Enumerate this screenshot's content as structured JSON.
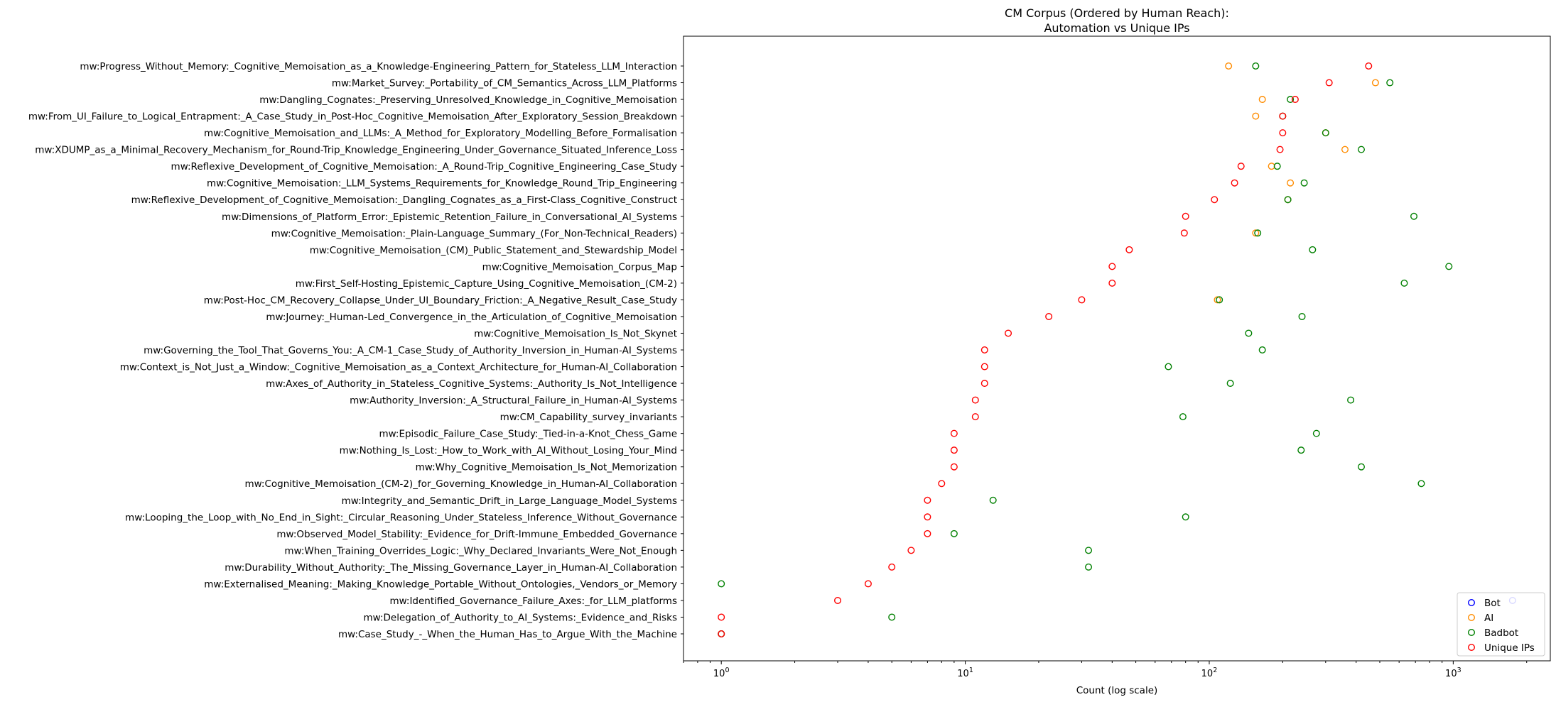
{
  "chart_data": {
    "type": "scatter",
    "title_lines": [
      "CM Corpus (Ordered by Human Reach):",
      "Automation vs Unique IPs"
    ],
    "xlabel": "Count (log scale)",
    "ylabel": "",
    "xscale": "log",
    "xlim": [
      0.7,
      2500
    ],
    "xticks": [
      {
        "value": 1,
        "base": "10",
        "exp": "0"
      },
      {
        "value": 10,
        "base": "10",
        "exp": "1"
      },
      {
        "value": 100,
        "base": "10",
        "exp": "2"
      },
      {
        "value": 1000,
        "base": "10",
        "exp": "3"
      }
    ],
    "grid": false,
    "legend_position": "lower right",
    "categories": [
      "mw:Progress_Without_Memory:_Cognitive_Memoisation_as_a_Knowledge-Engineering_Pattern_for_Stateless_LLM_Interaction",
      "mw:Market_Survey:_Portability_of_CM_Semantics_Across_LLM_Platforms",
      "mw:Dangling_Cognates:_Preserving_Unresolved_Knowledge_in_Cognitive_Memoisation",
      "mw:From_UI_Failure_to_Logical_Entrapment:_A_Case_Study_in_Post-Hoc_Cognitive_Memoisation_After_Exploratory_Session_Breakdown",
      "mw:Cognitive_Memoisation_and_LLMs:_A_Method_for_Exploratory_Modelling_Before_Formalisation",
      "mw:XDUMP_as_a_Minimal_Recovery_Mechanism_for_Round-Trip_Knowledge_Engineering_Under_Governance_Situated_Inference_Loss",
      "mw:Reflexive_Development_of_Cognitive_Memoisation:_A_Round-Trip_Cognitive_Engineering_Case_Study",
      "mw:Cognitive_Memoisation:_LLM_Systems_Requirements_for_Knowledge_Round_Trip_Engineering",
      "mw:Reflexive_Development_of_Cognitive_Memoisation:_Dangling_Cognates_as_a_First-Class_Cognitive_Construct",
      "mw:Dimensions_of_Platform_Error:_Epistemic_Retention_Failure_in_Conversational_AI_Systems",
      "mw:Cognitive_Memoisation:_Plain-Language_Summary_(For_Non-Technical_Readers)",
      "mw:Cognitive_Memoisation_(CM)_Public_Statement_and_Stewardship_Model",
      "mw:Cognitive_Memoisation_Corpus_Map",
      "mw:First_Self-Hosting_Epistemic_Capture_Using_Cognitive_Memoisation_(CM-2)",
      "mw:Post-Hoc_CM_Recovery_Collapse_Under_UI_Boundary_Friction:_A_Negative_Result_Case_Study",
      "mw:Journey:_Human-Led_Convergence_in_the_Articulation_of_Cognitive_Memoisation",
      "mw:Cognitive_Memoisation_Is_Not_Skynet",
      "mw:Governing_the_Tool_That_Governs_You:_A_CM-1_Case_Study_of_Authority_Inversion_in_Human-AI_Systems",
      "mw:Context_is_Not_Just_a_Window:_Cognitive_Memoisation_as_a_Context_Architecture_for_Human-AI_Collaboration",
      "mw:Axes_of_Authority_in_Stateless_Cognitive_Systems:_Authority_Is_Not_Intelligence",
      "mw:Authority_Inversion:_A_Structural_Failure_in_Human-AI_Systems",
      "mw:CM_Capability_survey_invariants",
      "mw:Episodic_Failure_Case_Study:_Tied-in-a-Knot_Chess_Game",
      "mw:Nothing_Is_Lost:_How_to_Work_with_AI_Without_Losing_Your_Mind",
      "mw:Why_Cognitive_Memoisation_Is_Not_Memorization",
      "mw:Cognitive_Memoisation_(CM-2)_for_Governing_Knowledge_in_Human-AI_Collaboration",
      "mw:Integrity_and_Semantic_Drift_in_Large_Language_Model_Systems",
      "mw:Looping_the_Loop_with_No_End_in_Sight:_Circular_Reasoning_Under_Stateless_Inference_Without_Governance",
      "mw:Observed_Model_Stability:_Evidence_for_Drift-Immune_Embedded_Governance",
      "mw:When_Training_Overrides_Logic:_Why_Declared_Invariants_Were_Not_Enough",
      "mw:Durability_Without_Authority:_The_Missing_Governance_Layer_in_Human-AI_Collaboration",
      "mw:Externalised_Meaning:_Making_Knowledge_Portable_Without_Ontologies,_Vendors_or_Memory",
      "mw:Identified_Governance_Failure_Axes:_for_LLM_platforms",
      "mw:Delegation_of_Authority_to_AI_Systems:_Evidence_and_Risks",
      "mw:Case_Study_-_When_the_Human_Has_to_Argue_With_the_Machine"
    ],
    "series": [
      {
        "name": "Bot",
        "color": "#0000ff",
        "values": [
          null,
          null,
          null,
          null,
          null,
          null,
          null,
          null,
          null,
          null,
          null,
          null,
          null,
          null,
          null,
          null,
          null,
          null,
          null,
          null,
          null,
          null,
          null,
          null,
          null,
          null,
          null,
          null,
          null,
          null,
          null,
          null,
          1750,
          null,
          1
        ]
      },
      {
        "name": "AI",
        "color": "#ff8c00",
        "values": [
          120,
          480,
          165,
          155,
          300,
          360,
          180,
          215,
          210,
          null,
          155,
          null,
          null,
          null,
          108,
          null,
          null,
          null,
          null,
          null,
          null,
          null,
          null,
          null,
          null,
          null,
          null,
          null,
          null,
          null,
          null,
          null,
          null,
          null,
          1
        ]
      },
      {
        "name": "Badbot",
        "color": "#008000",
        "values": [
          155,
          550,
          215,
          200,
          300,
          420,
          190,
          245,
          210,
          690,
          158,
          265,
          960,
          630,
          110,
          240,
          145,
          165,
          68,
          122,
          380,
          78,
          275,
          238,
          420,
          740,
          13,
          80,
          9,
          32,
          32,
          1,
          null,
          5,
          1
        ]
      },
      {
        "name": "Unique IPs",
        "color": "#ff0000",
        "values": [
          450,
          310,
          225,
          200,
          200,
          195,
          135,
          127,
          105,
          80,
          79,
          47,
          40,
          40,
          30,
          22,
          15,
          12,
          12,
          12,
          11,
          11,
          9,
          9,
          9,
          8,
          7,
          7,
          7,
          6,
          5,
          4,
          3,
          1,
          1
        ]
      }
    ]
  }
}
